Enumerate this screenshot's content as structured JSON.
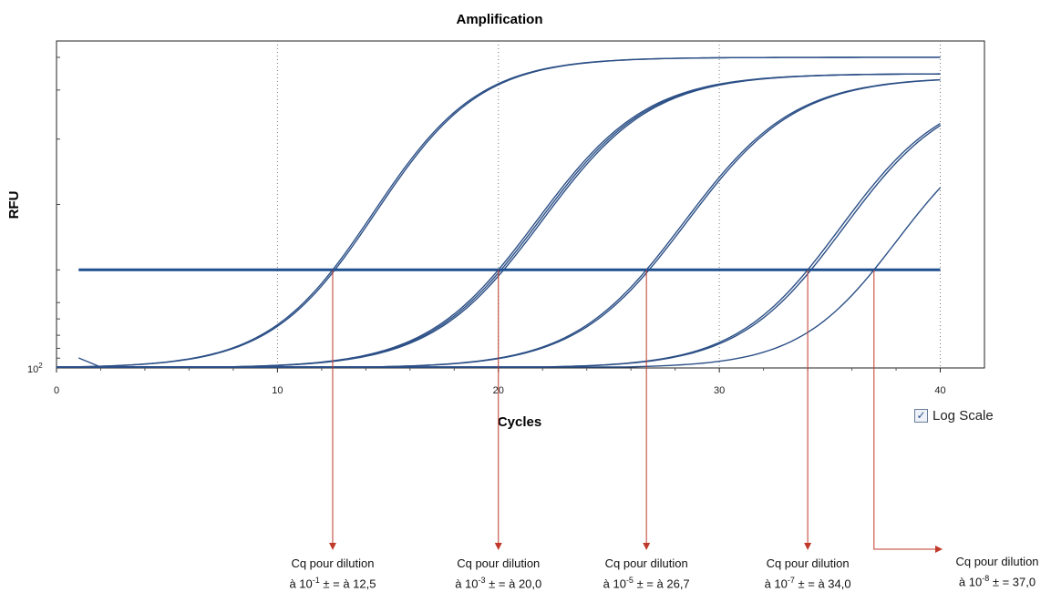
{
  "chart_data": {
    "type": "line",
    "title": "Amplification",
    "xlabel": "Cycles",
    "ylabel": "RFU",
    "xlim": [
      0,
      42
    ],
    "x_ticks": [
      0,
      10,
      20,
      30,
      40
    ],
    "y_scale": "log",
    "y_tick_label_base": "10",
    "y_tick_label_exp": "2",
    "threshold_line": true,
    "vertical_gridlines": [
      10,
      20,
      30,
      40
    ],
    "curve_color": "#2b4f86",
    "threshold_color": "#1f4f8f",
    "annotation_color": "#c0392b",
    "series": [
      {
        "cq": 12.5,
        "plateau": 0.95,
        "k": 0.42,
        "pair_offsets": [
          0,
          0.1
        ]
      },
      {
        "cq": 20.0,
        "plateau": 0.9,
        "k": 0.4,
        "pair_offsets": [
          0,
          0.12,
          0.24
        ]
      },
      {
        "cq": 26.7,
        "plateau": 0.89,
        "k": 0.4,
        "pair_offsets": [
          0,
          0.12
        ]
      },
      {
        "cq": 34.0,
        "plateau": 0.86,
        "k": 0.42,
        "pair_offsets": [
          0,
          0.15
        ]
      },
      {
        "cq": 37.0,
        "plateau": 0.78,
        "k": 0.45,
        "pair_offsets": [
          0
        ]
      }
    ],
    "annotations": [
      {
        "x": 12.5,
        "line1": "Cq pour dilution",
        "line2_prefix": "à 10",
        "exp": "-1",
        "line2_suffix": " ± = à 12,5"
      },
      {
        "x": 20.0,
        "line1": "Cq pour dilution",
        "line2_prefix": "à 10",
        "exp": "-3",
        "line2_suffix": " ± = à 20,0"
      },
      {
        "x": 26.7,
        "line1": "Cq pour dilution",
        "line2_prefix": "à 10",
        "exp": "-5",
        "line2_suffix": " ± = à 26,7"
      },
      {
        "x": 34.0,
        "line1": "Cq pour dilution",
        "line2_prefix": "à 10",
        "exp": "-7",
        "line2_suffix": " ± = à 34,0"
      },
      {
        "x": 37.0,
        "line1": "Cq pour dilution",
        "line2_prefix": "à 10",
        "exp": "-8",
        "line2_suffix": " ± = 37,0"
      }
    ]
  },
  "controls": {
    "log_scale_label": "Log Scale",
    "log_scale_checked": true
  }
}
